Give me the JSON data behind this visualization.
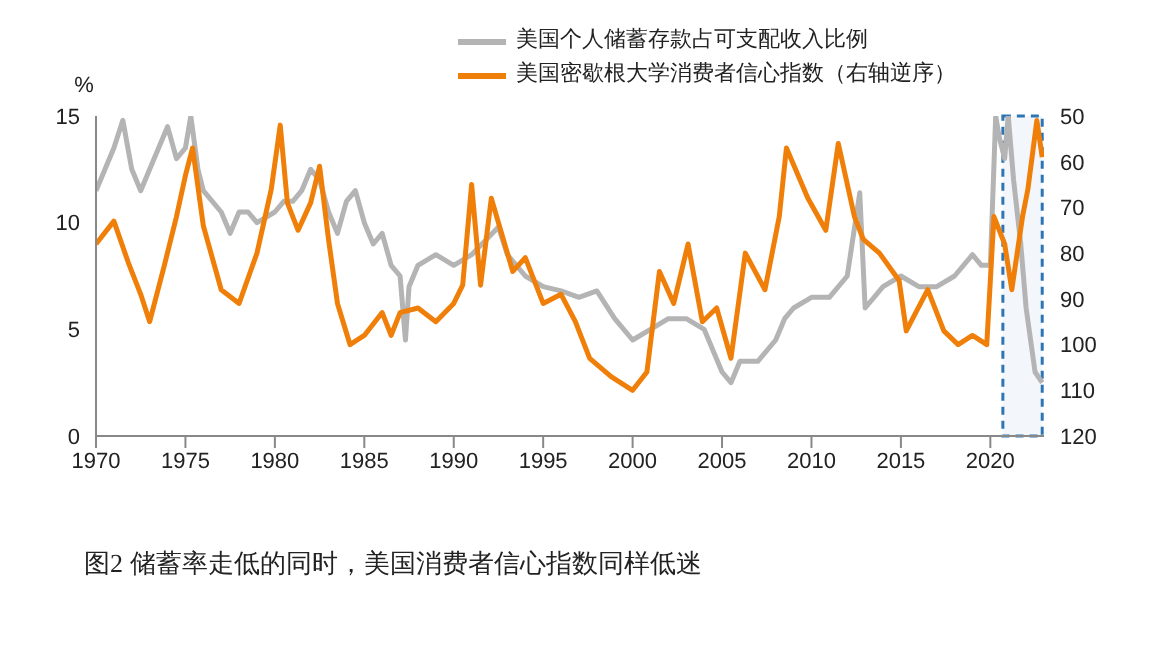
{
  "chart_data": {
    "type": "line",
    "title": "图2  储蓄率走低的同时，美国消费者信心指数同样低迷",
    "ylabel": "%",
    "legend": "top right",
    "xlim": [
      1970,
      2023
    ],
    "xticks": [
      1970,
      1975,
      1980,
      1985,
      1990,
      1995,
      2000,
      2005,
      2010,
      2015,
      2020
    ],
    "ylim": [
      0,
      15
    ],
    "yticks": [
      0,
      5,
      10,
      15
    ],
    "y2lim": [
      120,
      50
    ],
    "y2ticks": [
      50,
      60,
      70,
      80,
      90,
      100,
      110,
      120
    ],
    "bands": [
      {
        "axis": "x",
        "from": 2020.7,
        "to": 2022.9,
        "color": "#2e75b6"
      }
    ],
    "series": [
      {
        "name": "美国个人储蓄存款占可支配收入比例",
        "color": "#b4b4b4",
        "x": [
          1970,
          1971,
          1971.5,
          1972,
          1972.5,
          1973,
          1974,
          1974.5,
          1975,
          1975.3,
          1975.7,
          1976,
          1977,
          1977.5,
          1978,
          1978.5,
          1979,
          1980,
          1980.5,
          1981,
          1981.5,
          1982,
          1982.5,
          1983,
          1983.5,
          1984,
          1984.5,
          1985,
          1985.5,
          1986,
          1986.5,
          1987,
          1987.3,
          1987.5,
          1988,
          1989,
          1990,
          1991,
          1992.5,
          1993,
          1994,
          1995,
          1996,
          1997,
          1998,
          1999,
          2000,
          2001,
          2002,
          2003,
          2004,
          2005,
          2005.5,
          2006,
          2007,
          2008,
          2008.5,
          2009,
          2010,
          2011,
          2012,
          2012.7,
          2013,
          2014,
          2015,
          2016,
          2017,
          2018,
          2019,
          2019.5,
          2020,
          2020.3,
          2020.5,
          2020.8,
          2021,
          2021.3,
          2021.7,
          2022,
          2022.5,
          2022.9
        ],
        "values": [
          11.5,
          13.5,
          14.8,
          12.5,
          11.5,
          12.5,
          14.5,
          13,
          13.5,
          15,
          12.5,
          11.5,
          10.5,
          9.5,
          10.5,
          10.5,
          10,
          10.5,
          11,
          11,
          11.5,
          12.5,
          12,
          10.5,
          9.5,
          11,
          11.5,
          10,
          9,
          9.5,
          8,
          7.5,
          4.5,
          7,
          8,
          8.5,
          8,
          8.5,
          9.8,
          8.5,
          7.5,
          7,
          6.8,
          6.5,
          6.8,
          5.5,
          4.5,
          5,
          5.5,
          5.5,
          5,
          3,
          2.5,
          3.5,
          3.5,
          4.5,
          5.5,
          6,
          6.5,
          6.5,
          7.5,
          11.4,
          6,
          7,
          7.5,
          7,
          7,
          7.5,
          8.5,
          8,
          8,
          15,
          14,
          13,
          15,
          12,
          9,
          6,
          3,
          2.5
        ]
      },
      {
        "name": "美国密歇根大学消费者信心指数（右轴逆序）",
        "color": "#f07f09",
        "axis": "y2",
        "x": [
          1970,
          1971,
          1971.8,
          1972.5,
          1973,
          1973.8,
          1974.5,
          1975,
          1975.4,
          1976,
          1977,
          1978,
          1979,
          1979.8,
          1980.3,
          1980.7,
          1981.3,
          1982,
          1982.5,
          1983,
          1983.5,
          1984.2,
          1985,
          1986,
          1986.5,
          1987,
          1988,
          1989,
          1990,
          1990.5,
          1991,
          1991.5,
          1992.1,
          1993.3,
          1994,
          1995,
          1996,
          1996.8,
          1997.6,
          1998.8,
          2000,
          2000.8,
          2001.5,
          2002.3,
          2003.1,
          2003.9,
          2004.7,
          2005.5,
          2006.3,
          2007.4,
          2008.2,
          2008.6,
          2009.8,
          2010.8,
          2011.5,
          2012.4,
          2012.9,
          2013.8,
          2014.9,
          2015.3,
          2016.5,
          2017.4,
          2018.2,
          2019,
          2019.8,
          2020.2,
          2020.8,
          2021.2,
          2021.8,
          2022.1,
          2022.6,
          2022.9
        ],
        "values": [
          78,
          73,
          82,
          89,
          95,
          83,
          72,
          63,
          57,
          74,
          88,
          91,
          80,
          66,
          52,
          69,
          75,
          69,
          61,
          77,
          91,
          100,
          98,
          93,
          98,
          93,
          92,
          95,
          91,
          87,
          65,
          87,
          68,
          84,
          81,
          91,
          89,
          95,
          103,
          107,
          110,
          106,
          84,
          91,
          78,
          95,
          92,
          103,
          80,
          88,
          72,
          57,
          68,
          75,
          56,
          72,
          77,
          80,
          86,
          97,
          88,
          97,
          100,
          98,
          100,
          72,
          78,
          88,
          72,
          66,
          51,
          59
        ]
      }
    ]
  }
}
